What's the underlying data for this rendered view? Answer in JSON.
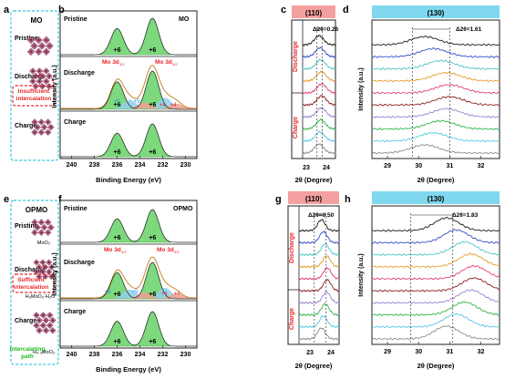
{
  "figure": {
    "top": {
      "panel_a": {
        "letter": "a",
        "title": "MO",
        "stages": [
          "Pristine",
          "Discharge",
          "Charge"
        ],
        "note_line1": "Insufficient",
        "note_line2": "intercalation"
      },
      "panel_b": {
        "letter": "b",
        "title": "MO",
        "subtitles": [
          "Pristine",
          "Discharge",
          "Charge"
        ],
        "peak_labels": [
          "+6",
          "+6",
          "+6",
          "+6",
          "+6",
          "+6"
        ],
        "mo3d32": "Mo 3d",
        "mo3d32_sub": "3/2",
        "mo3d52": "Mo 3d",
        "mo3d52_sub": "5/2",
        "minor_labels": [
          "+5",
          "+5",
          "+4",
          "+4"
        ],
        "ylabel": "Intensity (a.u.)",
        "xlabel": "Binding Energy (eV)",
        "xticks": [
          "240",
          "238",
          "236",
          "234",
          "232",
          "230"
        ]
      },
      "panel_c": {
        "letter": "c",
        "header": "(110)",
        "delta": "Δ2θ=0.26",
        "side_discharge": "Discharge",
        "side_charge": "Charge",
        "xlabel": "2θ (Degree)",
        "xticks": [
          "23",
          "24"
        ]
      },
      "panel_d": {
        "letter": "d",
        "header": "(130)",
        "delta": "Δ2θ=1.61",
        "ylabel": "Intensity (a.u.)",
        "xlabel": "2θ (Degree)",
        "xticks": [
          "29",
          "30",
          "31",
          "32"
        ]
      }
    },
    "bottom": {
      "panel_e": {
        "letter": "e",
        "title": "OPMO",
        "stages": [
          "Pristine",
          "Discharge",
          "Charge"
        ],
        "formulas": [
          "MoO₃",
          "H₃MoO₃·H₂O",
          "H₀.₃MoO₃"
        ],
        "note_line1": "Sufficient",
        "note_line2": "intercalation",
        "path_line1": "Intercalating",
        "path_line2": "path"
      },
      "panel_f": {
        "letter": "f",
        "title": "OPMO",
        "subtitles": [
          "Pristine",
          "Discharge",
          "Charge"
        ],
        "peak_labels": [
          "+6",
          "+6",
          "+6",
          "+6",
          "+6",
          "+6"
        ],
        "mo3d32": "Mo 3d",
        "mo3d32_sub": "3/2",
        "mo3d52": "Mo 3d",
        "mo3d52_sub": "5/2",
        "minor_labels": [
          "+5",
          "+5",
          "+4",
          "+4"
        ],
        "ylabel": "Intensity (a.u.)",
        "xlabel": "Binding Energy (eV)",
        "xticks": [
          "240",
          "238",
          "236",
          "234",
          "232",
          "230"
        ]
      },
      "panel_g": {
        "letter": "g",
        "header": "(110)",
        "delta": "Δ2θ=0.50",
        "side_discharge": "Discharge",
        "side_charge": "Charge",
        "xlabel": "2θ (Degree)",
        "xticks": [
          "23",
          "24"
        ]
      },
      "panel_h": {
        "letter": "h",
        "header": "(130)",
        "delta": "Δ2θ=1.83",
        "ylabel": "Intensity (a.u.)",
        "xlabel": "2θ (Degree)",
        "xticks": [
          "29",
          "30",
          "31",
          "32"
        ]
      }
    },
    "colors": {
      "peak_fill": "#7ed87e",
      "minor_fill": "#8fd0ef",
      "minor_fill2": "#f0a090",
      "red_text": "#e8262a",
      "blue_text": "#1f8fe0",
      "green_text": "#1fb81f",
      "box_border": "#35c6e6",
      "header_110": "#f4a0a0",
      "header_130": "#7fd8ee",
      "crystal": "#b0507a"
    },
    "xrd_colors": [
      "#8a8a8a",
      "#52c9e2",
      "#2db34a",
      "#9b7fd1",
      "#8b1e1e",
      "#e63b7a",
      "#e89a2a",
      "#4ac6c6",
      "#3050c8",
      "#1a1a1a"
    ]
  }
}
